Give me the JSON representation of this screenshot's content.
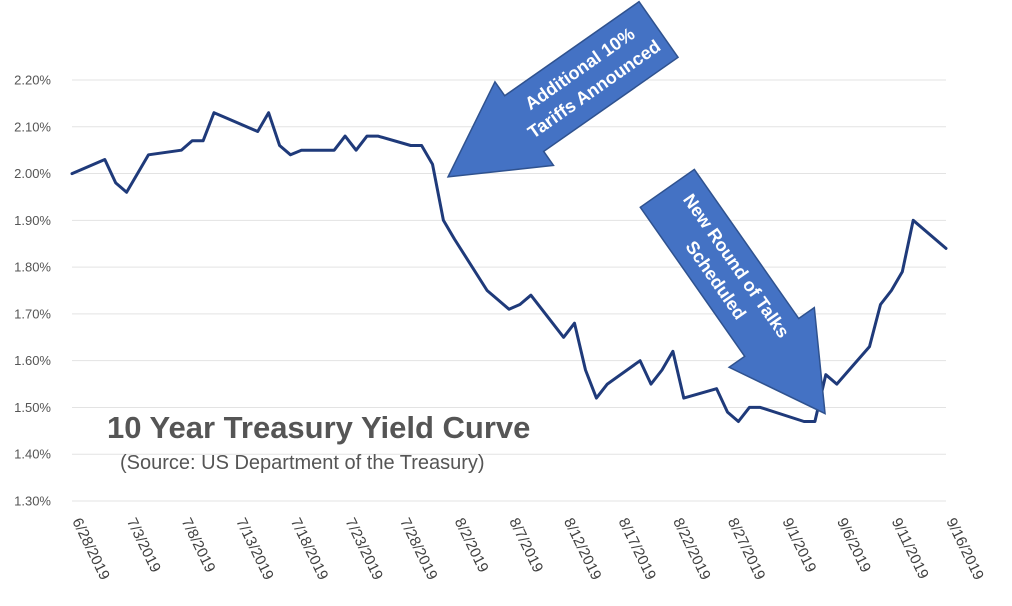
{
  "chart_data": {
    "type": "line",
    "title": "10 Year Treasury Yield Curve",
    "subtitle": "(Source: US Department of the Treasury)",
    "xlabel": "",
    "ylabel": "",
    "y_ticks": [
      "1.30%",
      "1.40%",
      "1.50%",
      "1.60%",
      "1.70%",
      "1.80%",
      "1.90%",
      "2.00%",
      "2.10%",
      "2.20%"
    ],
    "ylim": [
      1.3,
      2.2
    ],
    "y_unit": "%",
    "x_ticks": [
      "6/28/2019",
      "7/3/2019",
      "7/8/2019",
      "7/13/2019",
      "7/18/2019",
      "7/23/2019",
      "7/28/2019",
      "8/2/2019",
      "8/7/2019",
      "8/12/2019",
      "8/17/2019",
      "8/22/2019",
      "8/27/2019",
      "9/1/2019",
      "9/6/2019",
      "9/11/2019",
      "9/16/2019"
    ],
    "xlim": [
      "6/28/2019",
      "9/16/2019"
    ],
    "grid": true,
    "series": [
      {
        "color": "#1f3a7a",
        "x": [
          "6/28/2019",
          "7/1/2019",
          "7/2/2019",
          "7/3/2019",
          "7/5/2019",
          "7/8/2019",
          "7/9/2019",
          "7/10/2019",
          "7/11/2019",
          "7/12/2019",
          "7/15/2019",
          "7/16/2019",
          "7/17/2019",
          "7/18/2019",
          "7/19/2019",
          "7/22/2019",
          "7/23/2019",
          "7/24/2019",
          "7/25/2019",
          "7/26/2019",
          "7/29/2019",
          "7/30/2019",
          "7/31/2019",
          "8/1/2019",
          "8/2/2019",
          "8/5/2019",
          "8/6/2019",
          "8/7/2019",
          "8/8/2019",
          "8/9/2019",
          "8/12/2019",
          "8/13/2019",
          "8/14/2019",
          "8/15/2019",
          "8/16/2019",
          "8/19/2019",
          "8/20/2019",
          "8/21/2019",
          "8/22/2019",
          "8/23/2019",
          "8/26/2019",
          "8/27/2019",
          "8/28/2019",
          "8/29/2019",
          "8/30/2019",
          "9/3/2019",
          "9/4/2019",
          "9/5/2019",
          "9/6/2019",
          "9/9/2019",
          "9/10/2019",
          "9/11/2019",
          "9/12/2019",
          "9/13/2019",
          "9/16/2019"
        ],
        "values": [
          2.0,
          2.03,
          1.98,
          1.96,
          2.04,
          2.05,
          2.07,
          2.07,
          2.13,
          2.12,
          2.09,
          2.13,
          2.06,
          2.04,
          2.05,
          2.05,
          2.08,
          2.05,
          2.08,
          2.08,
          2.06,
          2.06,
          2.02,
          1.9,
          1.86,
          1.75,
          1.73,
          1.71,
          1.72,
          1.74,
          1.65,
          1.68,
          1.58,
          1.52,
          1.55,
          1.6,
          1.55,
          1.58,
          1.62,
          1.52,
          1.54,
          1.49,
          1.47,
          1.5,
          1.5,
          1.47,
          1.47,
          1.57,
          1.55,
          1.63,
          1.72,
          1.75,
          1.79,
          1.9,
          1.84
        ]
      }
    ],
    "annotations": [
      {
        "text_lines": [
          "Additional 10%",
          "Tariffs Announced"
        ],
        "color": "#4472c4",
        "points_to": "7/31/2019"
      },
      {
        "text_lines": [
          "New Round of Talks",
          "Scheduled"
        ],
        "color": "#4472c4",
        "points_to": "9/5/2019"
      }
    ]
  }
}
